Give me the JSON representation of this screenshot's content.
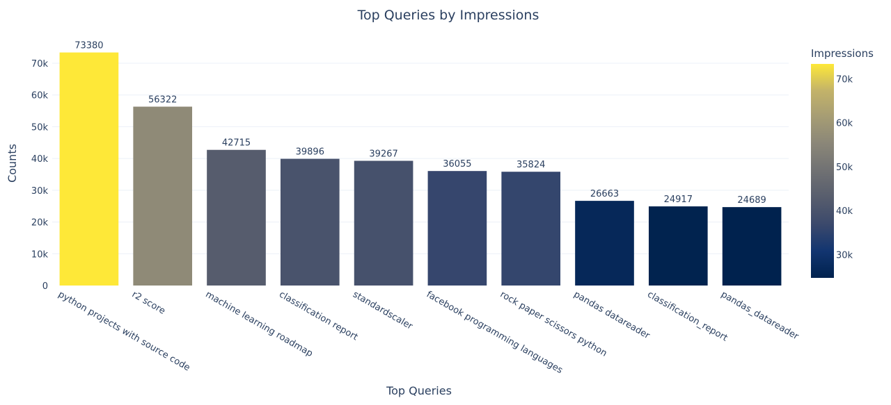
{
  "chart_data": {
    "type": "bar",
    "title": "Top Queries by Impressions",
    "xlabel": "Top Queries",
    "ylabel": "Counts",
    "ylim": [
      0,
      74000
    ],
    "yticks": [
      0,
      10000,
      20000,
      30000,
      40000,
      50000,
      60000,
      70000
    ],
    "ytick_labels": [
      "0",
      "10k",
      "20k",
      "30k",
      "40k",
      "50k",
      "60k",
      "70k"
    ],
    "categories": [
      "python projects with source code",
      "r2 score",
      "machine learning roadmap",
      "classification report",
      "standardscaler",
      "facebook programming languages",
      "rock paper scissors python",
      "pandas datareader",
      "classification_report",
      "pandas_datareader"
    ],
    "values": [
      73380,
      56322,
      42715,
      39896,
      39267,
      36055,
      35824,
      26663,
      24917,
      24689
    ],
    "data_labels": [
      "73380",
      "56322",
      "42715",
      "39896",
      "39267",
      "36055",
      "35824",
      "26663",
      "24917",
      "24689"
    ],
    "grid": true,
    "colorbar": {
      "title": "Impressions",
      "colorscale": "cividis",
      "range": [
        24689,
        73380
      ],
      "ticks": [
        30000,
        40000,
        50000,
        60000,
        70000
      ],
      "tick_labels": [
        "30k",
        "40k",
        "50k",
        "60k",
        "70k"
      ],
      "placement": "right"
    },
    "colors": {
      "low": "#00224e",
      "high": "#fee838",
      "gridline": "#ebf0f8",
      "text": "#2a3f5f"
    }
  }
}
